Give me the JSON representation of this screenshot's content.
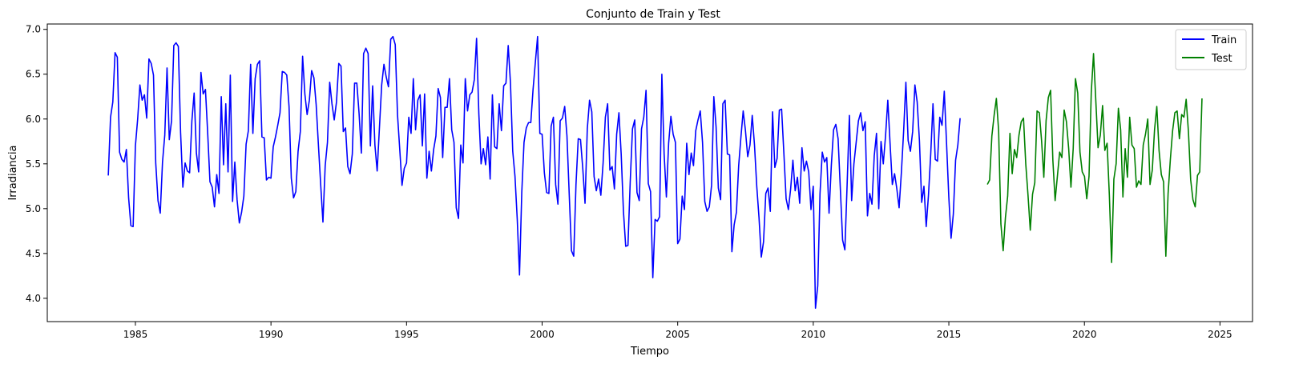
{
  "chart_data": {
    "type": "line",
    "title": "Conjunto de Train y Test",
    "xlabel": "Tiempo",
    "ylabel": "Irradiancia",
    "xlim": [
      1981.75,
      2026.2
    ],
    "ylim": [
      3.74,
      7.06
    ],
    "x_ticks": [
      1985,
      1990,
      1995,
      2000,
      2005,
      2010,
      2015,
      2020,
      2025
    ],
    "y_ticks": [
      4.0,
      4.5,
      5.0,
      5.5,
      6.0,
      6.5,
      7.0
    ],
    "y_tick_labels": [
      "4.0",
      "4.5",
      "5.0",
      "5.5",
      "6.0",
      "6.5",
      "7.0"
    ],
    "grid": false,
    "legend_position": "top-right",
    "series": [
      {
        "name": "Train",
        "color": "#0000ff",
        "x_start": 1984.0,
        "x_step": 0.08333,
        "values": [
          5.37,
          6.02,
          6.19,
          6.74,
          6.69,
          5.63,
          5.55,
          5.52,
          5.66,
          5.12,
          4.81,
          4.8,
          5.7,
          6.0,
          6.38,
          6.21,
          6.27,
          6.01,
          6.67,
          6.62,
          6.49,
          5.51,
          5.09,
          4.95,
          5.52,
          5.82,
          6.57,
          5.77,
          5.98,
          6.82,
          6.85,
          6.81,
          5.85,
          5.24,
          5.51,
          5.42,
          5.4,
          5.98,
          6.29,
          5.62,
          5.41,
          6.52,
          6.28,
          6.33,
          5.84,
          5.3,
          5.24,
          5.02,
          5.38,
          5.17,
          6.25,
          5.49,
          6.17,
          5.41,
          6.49,
          5.08,
          5.52,
          5.1,
          4.84,
          4.96,
          5.14,
          5.72,
          5.87,
          6.61,
          5.84,
          6.45,
          6.61,
          6.65,
          5.8,
          5.79,
          5.32,
          5.35,
          5.34,
          5.69,
          5.8,
          5.93,
          6.07,
          6.53,
          6.52,
          6.49,
          6.14,
          5.34,
          5.12,
          5.19,
          5.64,
          5.86,
          6.7,
          6.28,
          6.05,
          6.21,
          6.54,
          6.46,
          6.16,
          5.71,
          5.27,
          4.85,
          5.48,
          5.74,
          6.41,
          6.17,
          5.99,
          6.19,
          6.62,
          6.59,
          5.86,
          5.9,
          5.47,
          5.39,
          5.61,
          6.4,
          6.4,
          6.06,
          5.62,
          6.73,
          6.79,
          6.73,
          5.7,
          6.37,
          5.71,
          5.42,
          5.9,
          6.38,
          6.61,
          6.47,
          6.36,
          6.89,
          6.92,
          6.83,
          6.05,
          5.66,
          5.26,
          5.45,
          5.51,
          6.02,
          5.84,
          6.45,
          5.88,
          6.21,
          6.27,
          5.7,
          6.28,
          5.34,
          5.64,
          5.42,
          5.66,
          5.81,
          6.34,
          6.24,
          5.57,
          6.13,
          6.13,
          6.45,
          5.88,
          5.74,
          5.01,
          4.89,
          5.71,
          5.51,
          6.45,
          6.09,
          6.27,
          6.3,
          6.44,
          6.9,
          6.06,
          5.5,
          5.67,
          5.49,
          5.8,
          5.33,
          6.27,
          5.69,
          5.67,
          6.17,
          5.87,
          6.37,
          6.4,
          6.82,
          6.4,
          5.64,
          5.36,
          4.88,
          4.26,
          5.18,
          5.74,
          5.9,
          5.96,
          5.96,
          6.33,
          6.63,
          6.92,
          5.84,
          5.83,
          5.4,
          5.18,
          5.17,
          5.92,
          6.02,
          5.27,
          5.05,
          5.98,
          6.01,
          6.14,
          5.81,
          5.16,
          4.53,
          4.47,
          5.27,
          5.78,
          5.77,
          5.45,
          5.06,
          5.89,
          6.21,
          6.08,
          5.36,
          5.2,
          5.33,
          5.15,
          5.51,
          6.02,
          6.17,
          5.43,
          5.47,
          5.22,
          5.83,
          6.07,
          5.61,
          4.97,
          4.58,
          4.59,
          5.3,
          5.89,
          5.99,
          5.18,
          5.09,
          5.89,
          6.02,
          6.32,
          5.28,
          5.19,
          4.23,
          4.88,
          4.86,
          4.91,
          6.5,
          5.61,
          5.13,
          5.73,
          6.03,
          5.83,
          5.74,
          4.61,
          4.66,
          5.14,
          4.99,
          5.73,
          5.38,
          5.62,
          5.48,
          5.87,
          5.99,
          6.09,
          5.74,
          5.08,
          4.97,
          5.02,
          5.26,
          6.25,
          5.91,
          5.23,
          5.1,
          6.17,
          6.21,
          5.61,
          5.6,
          4.52,
          4.82,
          4.96,
          5.48,
          5.8,
          6.09,
          5.87,
          5.58,
          5.71,
          6.04,
          5.71,
          5.25,
          4.9,
          4.46,
          4.63,
          5.17,
          5.23,
          4.97,
          6.08,
          5.46,
          5.56,
          6.1,
          6.11,
          5.62,
          5.11,
          4.99,
          5.22,
          5.54,
          5.2,
          5.35,
          5.06,
          5.68,
          5.42,
          5.53,
          5.41,
          4.99,
          5.25,
          3.89,
          4.14,
          5.17,
          5.63,
          5.52,
          5.57,
          4.95,
          5.48,
          5.88,
          5.94,
          5.78,
          5.22,
          4.65,
          4.54,
          5.27,
          6.04,
          5.09,
          5.5,
          5.74,
          5.98,
          6.07,
          5.87,
          5.97,
          4.92,
          5.17,
          5.05,
          5.59,
          5.84,
          5.0,
          5.75,
          5.5,
          5.81,
          6.21,
          5.73,
          5.27,
          5.39,
          5.22,
          5.01,
          5.4,
          5.86,
          6.41,
          5.76,
          5.64,
          5.86,
          6.38,
          6.19,
          5.76,
          5.07,
          5.25,
          4.8,
          5.15,
          5.61,
          6.17,
          5.55,
          5.53,
          6.02,
          5.93,
          6.31,
          5.73,
          5.13,
          4.67,
          4.94,
          5.54,
          5.71,
          6.01
        ]
      },
      {
        "name": "Test",
        "color": "#008000",
        "x_start": 2016.42,
        "x_step": 0.08333,
        "values": [
          5.27,
          5.32,
          5.81,
          6.04,
          6.23,
          5.87,
          4.83,
          4.53,
          4.9,
          5.14,
          5.84,
          5.39,
          5.66,
          5.57,
          5.82,
          5.97,
          6.01,
          5.5,
          5.15,
          4.76,
          5.16,
          5.29,
          6.09,
          6.07,
          5.76,
          5.35,
          5.98,
          6.24,
          6.32,
          5.54,
          5.09,
          5.36,
          5.63,
          5.57,
          6.1,
          5.97,
          5.67,
          5.24,
          5.67,
          6.45,
          6.29,
          5.63,
          5.41,
          5.36,
          5.11,
          5.36,
          6.3,
          6.73,
          6.21,
          5.68,
          5.82,
          6.15,
          5.65,
          5.73,
          5.15,
          4.4,
          5.33,
          5.5,
          6.12,
          5.88,
          5.13,
          5.67,
          5.35,
          6.02,
          5.71,
          5.67,
          5.24,
          5.31,
          5.27,
          5.71,
          5.83,
          6.0,
          5.27,
          5.43,
          5.88,
          6.14,
          5.65,
          5.38,
          5.3,
          4.47,
          5.17,
          5.55,
          5.87,
          6.07,
          6.09,
          5.78,
          6.05,
          6.02,
          6.22,
          5.86,
          5.32,
          5.1,
          5.02,
          5.37,
          5.41,
          6.23
        ]
      }
    ]
  }
}
